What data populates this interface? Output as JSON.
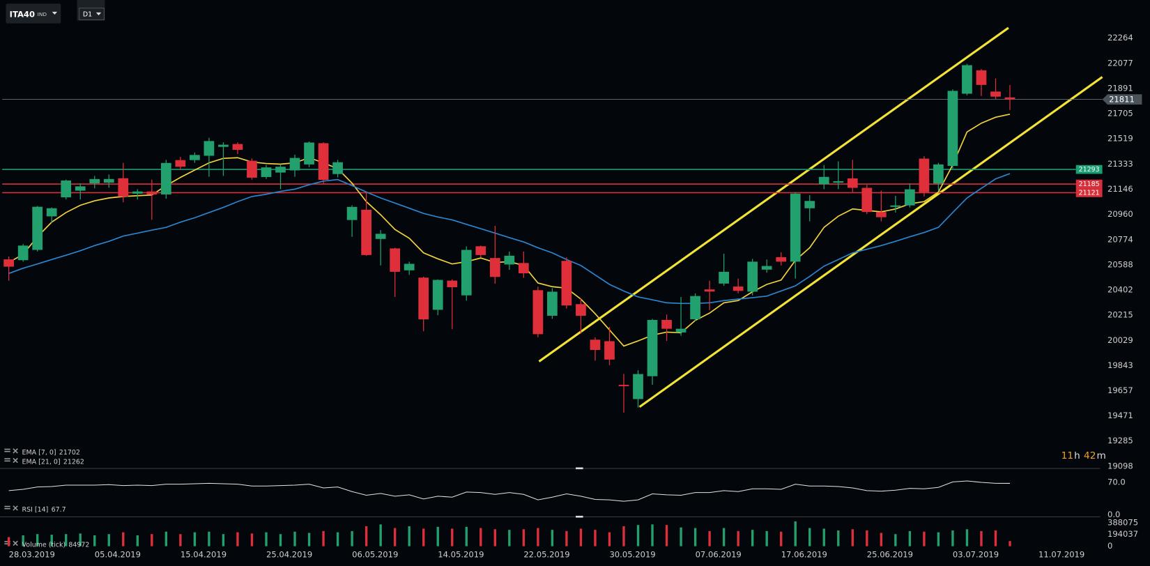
{
  "header": {
    "symbol": "ITA40",
    "market": "IND",
    "timeframe": "D1"
  },
  "chart_data": [
    {
      "type": "candlestick",
      "categories": [
        "28.03.2019",
        null,
        null,
        null,
        null,
        null,
        "05.04.2019",
        null,
        null,
        null,
        null,
        null,
        "15.04.2019",
        null,
        null,
        null,
        null,
        null,
        "25.04.2019",
        null,
        null,
        null,
        null,
        null,
        "06.05.2019",
        null,
        null,
        null,
        null,
        null,
        "14.05.2019",
        null,
        null,
        null,
        null,
        null,
        "22.05.2019",
        null,
        null,
        null,
        null,
        null,
        "30.05.2019",
        null,
        null,
        null,
        null,
        null,
        "07.06.2019",
        null,
        null,
        null,
        null,
        null,
        "17.06.2019",
        null,
        null,
        null,
        null,
        null,
        "25.06.2019",
        null,
        null,
        null,
        null,
        null,
        "03.07.2019",
        null,
        null,
        null,
        null,
        null,
        "11.07.2019"
      ],
      "open": [
        20628,
        20622,
        20698,
        20946,
        21087,
        21136,
        21190,
        21195,
        21228,
        21114,
        21130,
        21108,
        21362,
        21362,
        21394,
        21460,
        21481,
        21357,
        21237,
        21270,
        21286,
        21330,
        21487,
        21259,
        20919,
        20995,
        20779,
        20709,
        20547,
        20493,
        20255,
        20471,
        20362,
        20725,
        20638,
        20590,
        20601,
        20400,
        20211,
        20617,
        20297,
        20034,
        20023,
        19700,
        19595,
        19764,
        20180,
        20088,
        20185,
        20406,
        20449,
        20427,
        20389,
        20552,
        20644,
        20611,
        21006,
        21184,
        21195,
        21227,
        21157,
        20978,
        21016,
        21027,
        21373,
        21189,
        21319,
        21853,
        22026,
        21869,
        21826,
        null,
        null
      ],
      "high": [
        20649,
        20741,
        21023,
        21012,
        21218,
        21191,
        21245,
        21256,
        21342,
        21147,
        21218,
        21364,
        21386,
        21418,
        21527,
        21494,
        21494,
        21375,
        21326,
        21332,
        21402,
        21500,
        21494,
        21364,
        21028,
        21126,
        20844,
        20714,
        20611,
        20500,
        20480,
        20480,
        20724,
        20730,
        20876,
        20686,
        20686,
        20426,
        20415,
        20643,
        20340,
        20052,
        20128,
        19781,
        19808,
        20188,
        20220,
        20350,
        20377,
        20470,
        20670,
        20486,
        20632,
        20627,
        20681,
        21126,
        21104,
        21326,
        21353,
        21364,
        21180,
        21136,
        21098,
        21191,
        21391,
        21342,
        21885,
        22074,
        22036,
        21966,
        21917,
        null,
        null
      ],
      "low": [
        20470,
        20611,
        20686,
        20898,
        21071,
        21071,
        21153,
        21158,
        21050,
        21071,
        20920,
        21077,
        21288,
        21342,
        21239,
        21245,
        21407,
        21218,
        21223,
        21147,
        21239,
        21310,
        21180,
        21234,
        20795,
        20654,
        20583,
        20350,
        20513,
        20096,
        20215,
        20112,
        20323,
        20643,
        20448,
        20551,
        20491,
        20052,
        20188,
        20264,
        20079,
        19879,
        19846,
        19494,
        19532,
        19700,
        20025,
        20063,
        20171,
        20253,
        20432,
        20377,
        20361,
        20529,
        20583,
        20486,
        20909,
        21147,
        21147,
        21126,
        20963,
        20909,
        20974,
        21012,
        21093,
        21136,
        21299,
        21841,
        21836,
        21814,
        21733,
        null,
        null
      ],
      "close": [
        20574,
        20730,
        21017,
        21006,
        21211,
        21168,
        21222,
        21222,
        21092,
        21130,
        21108,
        21341,
        21313,
        21400,
        21503,
        21476,
        21438,
        21232,
        21308,
        21313,
        21378,
        21492,
        21216,
        21346,
        21016,
        20660,
        20817,
        20536,
        20595,
        20184,
        20476,
        20422,
        20698,
        20660,
        20498,
        20655,
        20525,
        20075,
        20389,
        20287,
        20211,
        19958,
        19887,
        19690,
        19780,
        20180,
        20115,
        20115,
        20357,
        20390,
        20536,
        20395,
        20611,
        20579,
        20611,
        21114,
        21060,
        21238,
        21206,
        21157,
        20978,
        20940,
        21027,
        21146,
        21125,
        21330,
        21874,
        22064,
        21918,
        21831,
        21811,
        null,
        null
      ],
      "up_color": "#22a06e",
      "down_color": "#df2f3a",
      "ylim": [
        19087,
        22546
      ],
      "yticks": [
        22264,
        22077,
        21891,
        21705,
        21519,
        21333,
        21146,
        20960,
        20774,
        20588,
        20402,
        20215,
        20029,
        19843,
        19657,
        19471,
        19285,
        19098
      ],
      "lines": [
        {
          "name": "EMA [7, 0]",
          "color": "#f3d23c",
          "values": [
            20605,
            20665,
            20795,
            20903,
            20974,
            21028,
            21061,
            21082,
            21093,
            21099,
            21104,
            21174,
            21234,
            21288,
            21342,
            21375,
            21380,
            21348,
            21337,
            21332,
            21342,
            21380,
            21342,
            21299,
            21191,
            21055,
            20958,
            20849,
            20784,
            20676,
            20632,
            20594,
            20611,
            20638,
            20605,
            20611,
            20583,
            20453,
            20426,
            20415,
            20334,
            20226,
            20106,
            19987,
            20025,
            20068,
            20090,
            20085,
            20177,
            20231,
            20307,
            20323,
            20388,
            20443,
            20475,
            20621,
            20714,
            20865,
            20947,
            21001,
            20990,
            20979,
            21001,
            21039,
            21055,
            21126,
            21326,
            21570,
            21635,
            21679,
            21702,
            null,
            null
          ]
        },
        {
          "name": "EMA [21, 0]",
          "color": "#2a86d0",
          "values": [
            20524,
            20562,
            20594,
            20627,
            20659,
            20692,
            20730,
            20762,
            20800,
            20822,
            20844,
            20865,
            20903,
            20936,
            20974,
            21012,
            21055,
            21093,
            21109,
            21131,
            21147,
            21180,
            21207,
            21218,
            21174,
            21126,
            21082,
            21044,
            21006,
            20968,
            20941,
            20920,
            20887,
            20855,
            20822,
            20789,
            20757,
            20714,
            20676,
            20627,
            20583,
            20513,
            20443,
            20394,
            20350,
            20329,
            20307,
            20302,
            20302,
            20307,
            20323,
            20334,
            20345,
            20356,
            20394,
            20432,
            20502,
            20578,
            20627,
            20676,
            20703,
            20730,
            20762,
            20795,
            20827,
            20865,
            20974,
            21082,
            21153,
            21223,
            21262,
            null,
            null
          ]
        }
      ],
      "levels": [
        {
          "value": 21293,
          "color": "#1a9e72"
        },
        {
          "value": 21185,
          "color": "#d8303a"
        },
        {
          "value": 21121,
          "color": "#d8303a"
        }
      ],
      "last_price": 21811,
      "countdown": [
        "11",
        "h",
        "42",
        "m"
      ]
    },
    {
      "type": "line",
      "name": "RSI [14]",
      "color": "#e4e4e4",
      "values": [
        52,
        55,
        60,
        61,
        64,
        64,
        64,
        65,
        63,
        64,
        63,
        66,
        66,
        67,
        68,
        67,
        66,
        62,
        62,
        63,
        64,
        66,
        58,
        60,
        50,
        42,
        46,
        40,
        43,
        34,
        40,
        38,
        49,
        48,
        44,
        48,
        44,
        32,
        38,
        45,
        40,
        33,
        32,
        29,
        32,
        45,
        43,
        42,
        48,
        48,
        52,
        50,
        56,
        56,
        55,
        66,
        62,
        62,
        61,
        58,
        52,
        51,
        53,
        57,
        56,
        59,
        71,
        73,
        70,
        68,
        67.7,
        null,
        null
      ],
      "ylim": [
        0,
        100
      ],
      "yticks": [
        {
          "value": 70,
          "label": "70.0"
        },
        {
          "value": 0,
          "label": "0.0"
        }
      ]
    },
    {
      "type": "bar",
      "name": "Volume (tick)",
      "values": [
        150000,
        180000,
        200000,
        190000,
        200000,
        210000,
        180000,
        200000,
        230000,
        180000,
        200000,
        240000,
        200000,
        230000,
        240000,
        200000,
        230000,
        210000,
        230000,
        200000,
        240000,
        220000,
        250000,
        230000,
        250000,
        330000,
        360000,
        300000,
        330000,
        290000,
        320000,
        290000,
        320000,
        300000,
        280000,
        270000,
        280000,
        300000,
        270000,
        250000,
        290000,
        270000,
        230000,
        330000,
        350000,
        360000,
        350000,
        310000,
        300000,
        250000,
        300000,
        250000,
        270000,
        250000,
        240000,
        410000,
        300000,
        290000,
        260000,
        280000,
        260000,
        220000,
        200000,
        250000,
        240000,
        230000,
        260000,
        280000,
        250000,
        260000,
        84972,
        null,
        null
      ],
      "ylim": [
        0,
        460000
      ],
      "yticks": [
        388075,
        194037,
        0
      ]
    }
  ]
}
